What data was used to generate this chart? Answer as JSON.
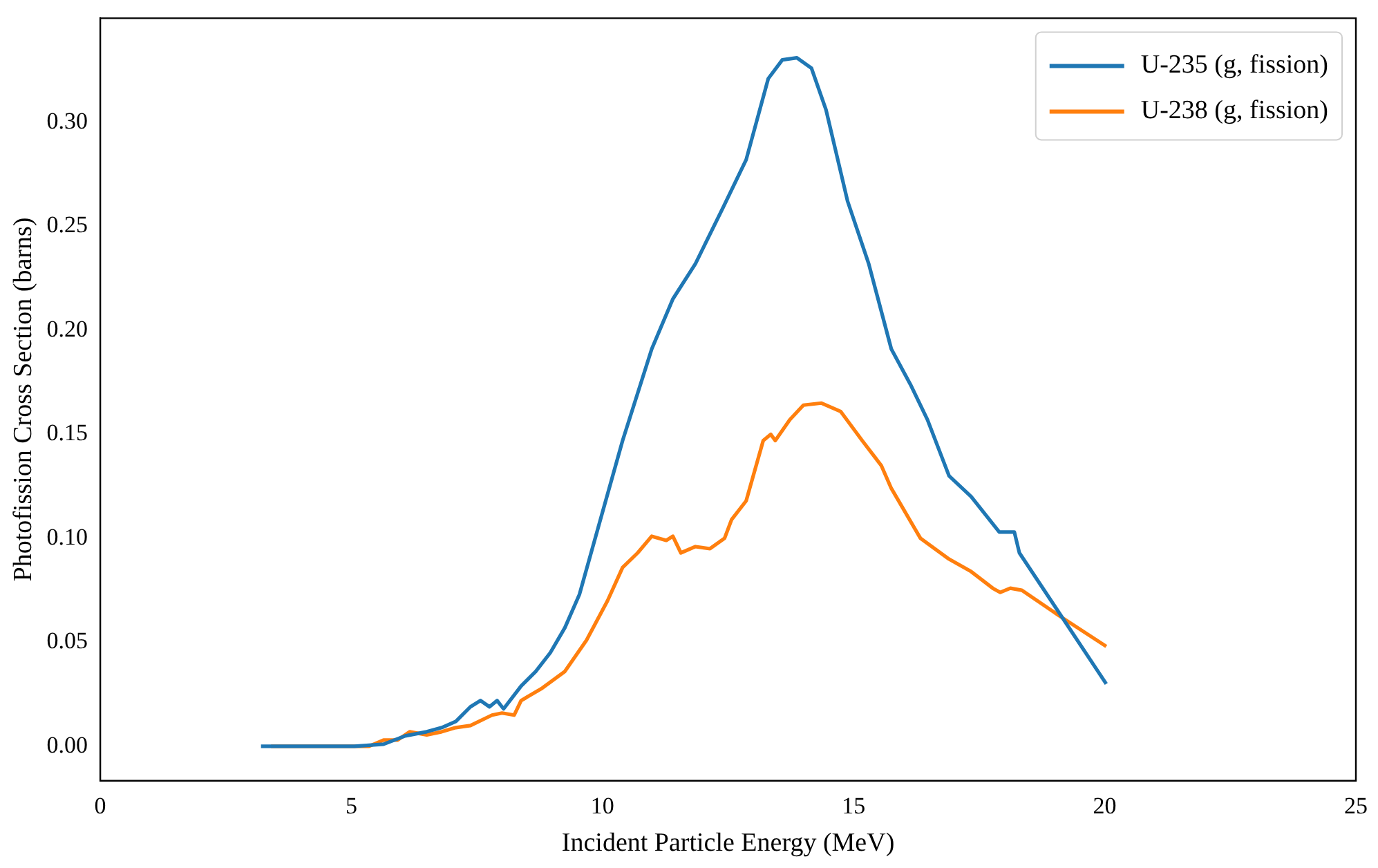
{
  "chart_data": {
    "type": "line",
    "xlabel": "Incident Particle Energy (MeV)",
    "ylabel": "Photofission Cross Section (barns)",
    "xlim": [
      0,
      25
    ],
    "xticks": [
      0,
      5,
      10,
      15,
      20,
      25
    ],
    "ylim": [
      -0.0165,
      0.35
    ],
    "yticks": [
      {
        "value": 0,
        "label": "0.00"
      },
      {
        "value": 0.05,
        "label": "0.05"
      },
      {
        "value": 0.1,
        "label": "0.10"
      },
      {
        "value": 0.15,
        "label": "0.15"
      },
      {
        "value": 0.2,
        "label": "0.20"
      },
      {
        "value": 0.25,
        "label": "0.25"
      },
      {
        "value": 0.3,
        "label": "0.30"
      }
    ],
    "legend": "top right",
    "series": [
      {
        "name": "U-235 (g, fission)",
        "color": "#1f77b4",
        "x": [
          3.2,
          5.06,
          5.64,
          6.07,
          6.5,
          6.8,
          7.08,
          7.37,
          7.57,
          7.75,
          7.9,
          8.03,
          8.38,
          8.67,
          8.96,
          9.25,
          9.54,
          9.97,
          10.4,
          10.98,
          11.4,
          11.85,
          12.4,
          12.86,
          13.3,
          13.58,
          13.87,
          14.16,
          14.45,
          14.88,
          15.3,
          15.75,
          16.13,
          16.47,
          16.9,
          17.34,
          17.9,
          18.2,
          18.3,
          20.03
        ],
        "values": [
          0,
          0,
          0.001,
          0.005,
          0.007,
          0.009,
          0.012,
          0.019,
          0.022,
          0.019,
          0.022,
          0.018,
          0.029,
          0.036,
          0.045,
          0.057,
          0.073,
          0.11,
          0.147,
          0.191,
          0.215,
          0.232,
          0.259,
          0.282,
          0.321,
          0.33,
          0.331,
          0.326,
          0.306,
          0.262,
          0.232,
          0.191,
          0.174,
          0.157,
          0.13,
          0.12,
          0.103,
          0.103,
          0.093,
          0.03
        ]
      },
      {
        "name": "U-238 (g, fission)",
        "color": "#ff7f0e",
        "x": [
          3.4,
          5.35,
          5.64,
          5.92,
          6.16,
          6.5,
          6.8,
          7.08,
          7.37,
          7.8,
          8.0,
          8.24,
          8.38,
          8.8,
          9.25,
          9.68,
          10.1,
          10.4,
          10.7,
          10.98,
          11.27,
          11.4,
          11.56,
          11.85,
          12.14,
          12.43,
          12.57,
          12.86,
          13.2,
          13.35,
          13.44,
          13.73,
          14.0,
          14.36,
          14.74,
          15.17,
          15.55,
          15.75,
          16.33,
          16.9,
          17.34,
          17.77,
          17.92,
          18.12,
          18.35,
          19.08,
          20.03
        ],
        "values": [
          0,
          0,
          0.003,
          0.003,
          0.007,
          0.0055,
          0.007,
          0.009,
          0.01,
          0.015,
          0.016,
          0.015,
          0.022,
          0.028,
          0.036,
          0.051,
          0.07,
          0.086,
          0.093,
          0.101,
          0.099,
          0.101,
          0.093,
          0.096,
          0.095,
          0.1,
          0.109,
          0.118,
          0.147,
          0.15,
          0.147,
          0.157,
          0.164,
          0.165,
          0.161,
          0.147,
          0.135,
          0.124,
          0.1,
          0.09,
          0.084,
          0.076,
          0.074,
          0.076,
          0.075,
          0.063,
          0.048
        ]
      }
    ]
  }
}
